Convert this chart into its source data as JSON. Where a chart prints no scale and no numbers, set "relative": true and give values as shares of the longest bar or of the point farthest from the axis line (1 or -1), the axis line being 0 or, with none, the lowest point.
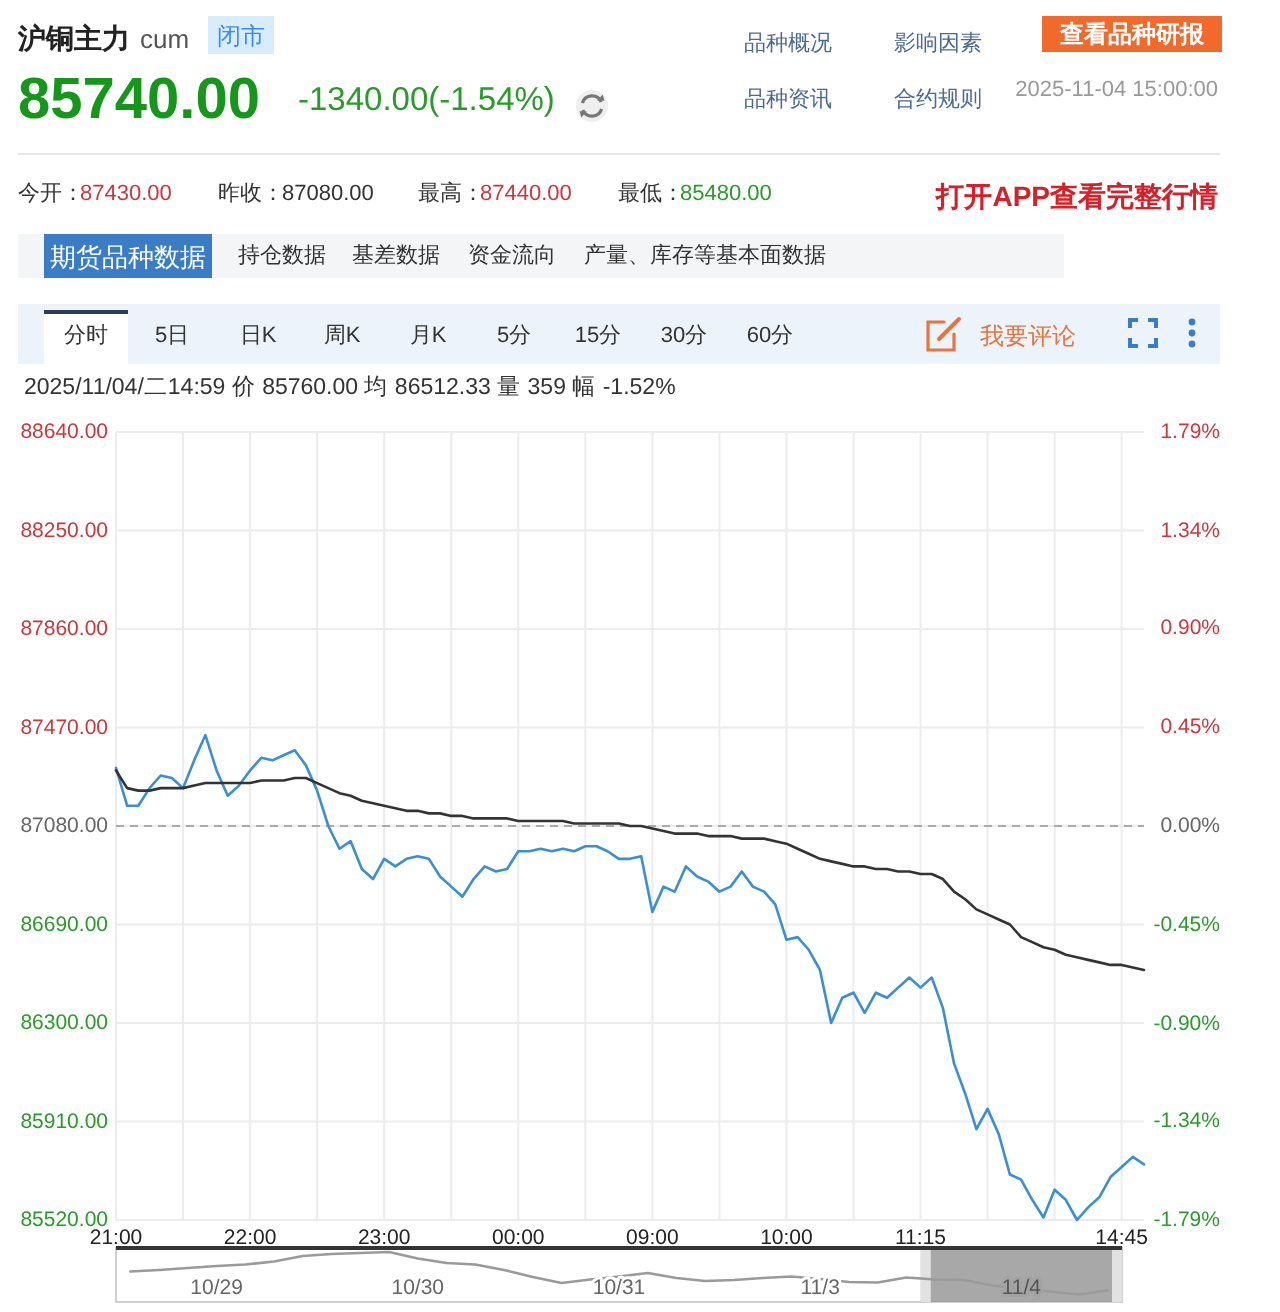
{
  "chart_data": [
    {
      "type": "line",
      "title": "沪铜主力",
      "subtitle": "2025/11/04/二14:59 价 85760.00 均 86512.33 量 359 幅 -1.52%",
      "annotations": [
        "cum",
        "闭市",
        "85740.00",
        "-1340.00(-1.54%)",
        "品种概况",
        "影响因素",
        "查看品种研报",
        "品种资讯",
        "合约规则",
        "2025-11-04 15:00:00",
        "今开：",
        "87430.00",
        "昨收：",
        "87080.00",
        "最高：",
        "87440.00",
        "最低：",
        "85480.00",
        "打开APP查看完整行情",
        "期货品种数据",
        "持仓数据",
        "基差数据",
        "资金流向",
        "产量、库存等基本面数据",
        "分时",
        "5日",
        "日K",
        "周K",
        "月K",
        "5分",
        "15分",
        "30分",
        "60分",
        "我要评论"
      ],
      "categories": [
        "21:00",
        null,
        null,
        null,
        null,
        null,
        null,
        null,
        null,
        null,
        null,
        null,
        "22:00",
        null,
        null,
        null,
        null,
        null,
        null,
        null,
        null,
        null,
        null,
        null,
        "23:00",
        null,
        null,
        null,
        null,
        null,
        null,
        null,
        null,
        null,
        null,
        null,
        "00:00",
        null,
        null,
        null,
        null,
        null,
        null,
        null,
        null,
        null,
        null,
        null,
        "09:00",
        null,
        null,
        null,
        null,
        null,
        null,
        null,
        null,
        null,
        null,
        null,
        "10:00",
        null,
        null,
        null,
        null,
        null,
        null,
        null,
        null,
        null,
        null,
        null,
        "11:15",
        null,
        null,
        null,
        null,
        null,
        null,
        null,
        null,
        null,
        null,
        null,
        null,
        null,
        null,
        null,
        null,
        null,
        "14:45",
        null,
        null
      ],
      "ylim": [
        85520,
        88640
      ],
      "yticks": [
        {
          "value": 85520,
          "label": "85520.00"
        },
        {
          "value": 85910,
          "label": "85910.00"
        },
        {
          "value": 86300,
          "label": "86300.00"
        },
        {
          "value": 86690,
          "label": "86690.00"
        },
        {
          "value": 87080,
          "label": "87080.00"
        },
        {
          "value": 87470,
          "label": "87470.00"
        },
        {
          "value": 87860,
          "label": "87860.00"
        },
        {
          "value": 88250,
          "label": "88250.00"
        },
        {
          "value": 88640,
          "label": "88640.00"
        }
      ],
      "y2lim": [
        -1.79,
        1.79
      ],
      "y2ticks": [
        {
          "value": -1.79,
          "label": "-1.79%"
        },
        {
          "value": -1.34,
          "label": "-1.34%"
        },
        {
          "value": -0.9,
          "label": "-0.90%"
        },
        {
          "value": -0.45,
          "label": "-0.45%"
        },
        {
          "value": 0,
          "label": "0.00%"
        },
        {
          "value": 0.45,
          "label": "0.45%"
        },
        {
          "value": 0.9,
          "label": "0.90%"
        },
        {
          "value": 1.34,
          "label": "1.34%"
        },
        {
          "value": 1.79,
          "label": "1.79%"
        }
      ],
      "grid": true,
      "ref_lines": [
        {
          "axis": "y",
          "value": 87080,
          "line_style": "dashed",
          "color": "#aaaaaa"
        }
      ],
      "series": [
        {
          "color": "#3a8fd4",
          "values": [
            87310,
            87160,
            87160,
            87230,
            87280,
            87270,
            87230,
            87340,
            87440,
            87300,
            87200,
            87240,
            87300,
            87350,
            87340,
            87360,
            87380,
            87320,
            87220,
            87080,
            86990,
            87020,
            86910,
            86870,
            86950,
            86920,
            86950,
            86960,
            86950,
            86880,
            86840,
            86800,
            86870,
            86920,
            86900,
            86910,
            86980,
            86980,
            86990,
            86980,
            86990,
            86980,
            87000,
            87000,
            86980,
            86950,
            86950,
            86960,
            86740,
            86840,
            86820,
            86920,
            86880,
            86860,
            86820,
            86840,
            86900,
            86840,
            86820,
            86770,
            86630,
            86640,
            86590,
            86510,
            86300,
            86400,
            86420,
            86340,
            86420,
            86400,
            86440,
            86480,
            86440,
            86480,
            86360,
            86140,
            86020,
            85880,
            85960,
            85860,
            85700,
            85680,
            85600,
            85530,
            85640,
            85600,
            85520,
            85570,
            85610,
            85690,
            85730,
            85770,
            85740
          ]
        },
        {
          "color": "#333333",
          "values": [
            87300,
            87230,
            87220,
            87220,
            87230,
            87230,
            87230,
            87240,
            87250,
            87250,
            87250,
            87250,
            87250,
            87260,
            87260,
            87260,
            87270,
            87270,
            87250,
            87230,
            87210,
            87200,
            87180,
            87170,
            87160,
            87150,
            87140,
            87140,
            87130,
            87130,
            87120,
            87120,
            87110,
            87110,
            87110,
            87110,
            87100,
            87100,
            87100,
            87100,
            87100,
            87090,
            87090,
            87090,
            87090,
            87090,
            87080,
            87080,
            87070,
            87060,
            87050,
            87050,
            87050,
            87040,
            87040,
            87040,
            87030,
            87030,
            87030,
            87020,
            87010,
            86990,
            86970,
            86950,
            86940,
            86930,
            86920,
            86920,
            86910,
            86910,
            86900,
            86900,
            86890,
            86890,
            86870,
            86820,
            86790,
            86750,
            86730,
            86710,
            86690,
            86640,
            86620,
            86600,
            86590,
            86570,
            86560,
            86550,
            86540,
            86530,
            86530,
            86520,
            86510
          ]
        }
      ]
    },
    {
      "type": "line",
      "relative": true,
      "categories": [
        null,
        null,
        null,
        "10/29",
        null,
        null,
        null,
        null,
        null,
        null,
        "10/30",
        null,
        null,
        null,
        null,
        null,
        null,
        "10/31",
        null,
        null,
        null,
        null,
        null,
        null,
        "11/3",
        null,
        null,
        null,
        null,
        null,
        null,
        "11/4",
        null,
        null,
        null
      ],
      "series": [
        {
          "color": "#9a9a9a",
          "values": [
            0.61,
            0.64,
            0.68,
            0.72,
            0.75,
            0.81,
            0.92,
            0.96,
            0.98,
            1,
            0.87,
            0.78,
            0.75,
            0.64,
            0.5,
            0.38,
            0.45,
            0.51,
            0.58,
            0.48,
            0.42,
            0.44,
            0.48,
            0.51,
            0.46,
            0.4,
            0.39,
            0.49,
            0.45,
            0.44,
            0.33,
            0.26,
            0.21,
            0.15,
            0.23
          ]
        }
      ]
    }
  ]
}
